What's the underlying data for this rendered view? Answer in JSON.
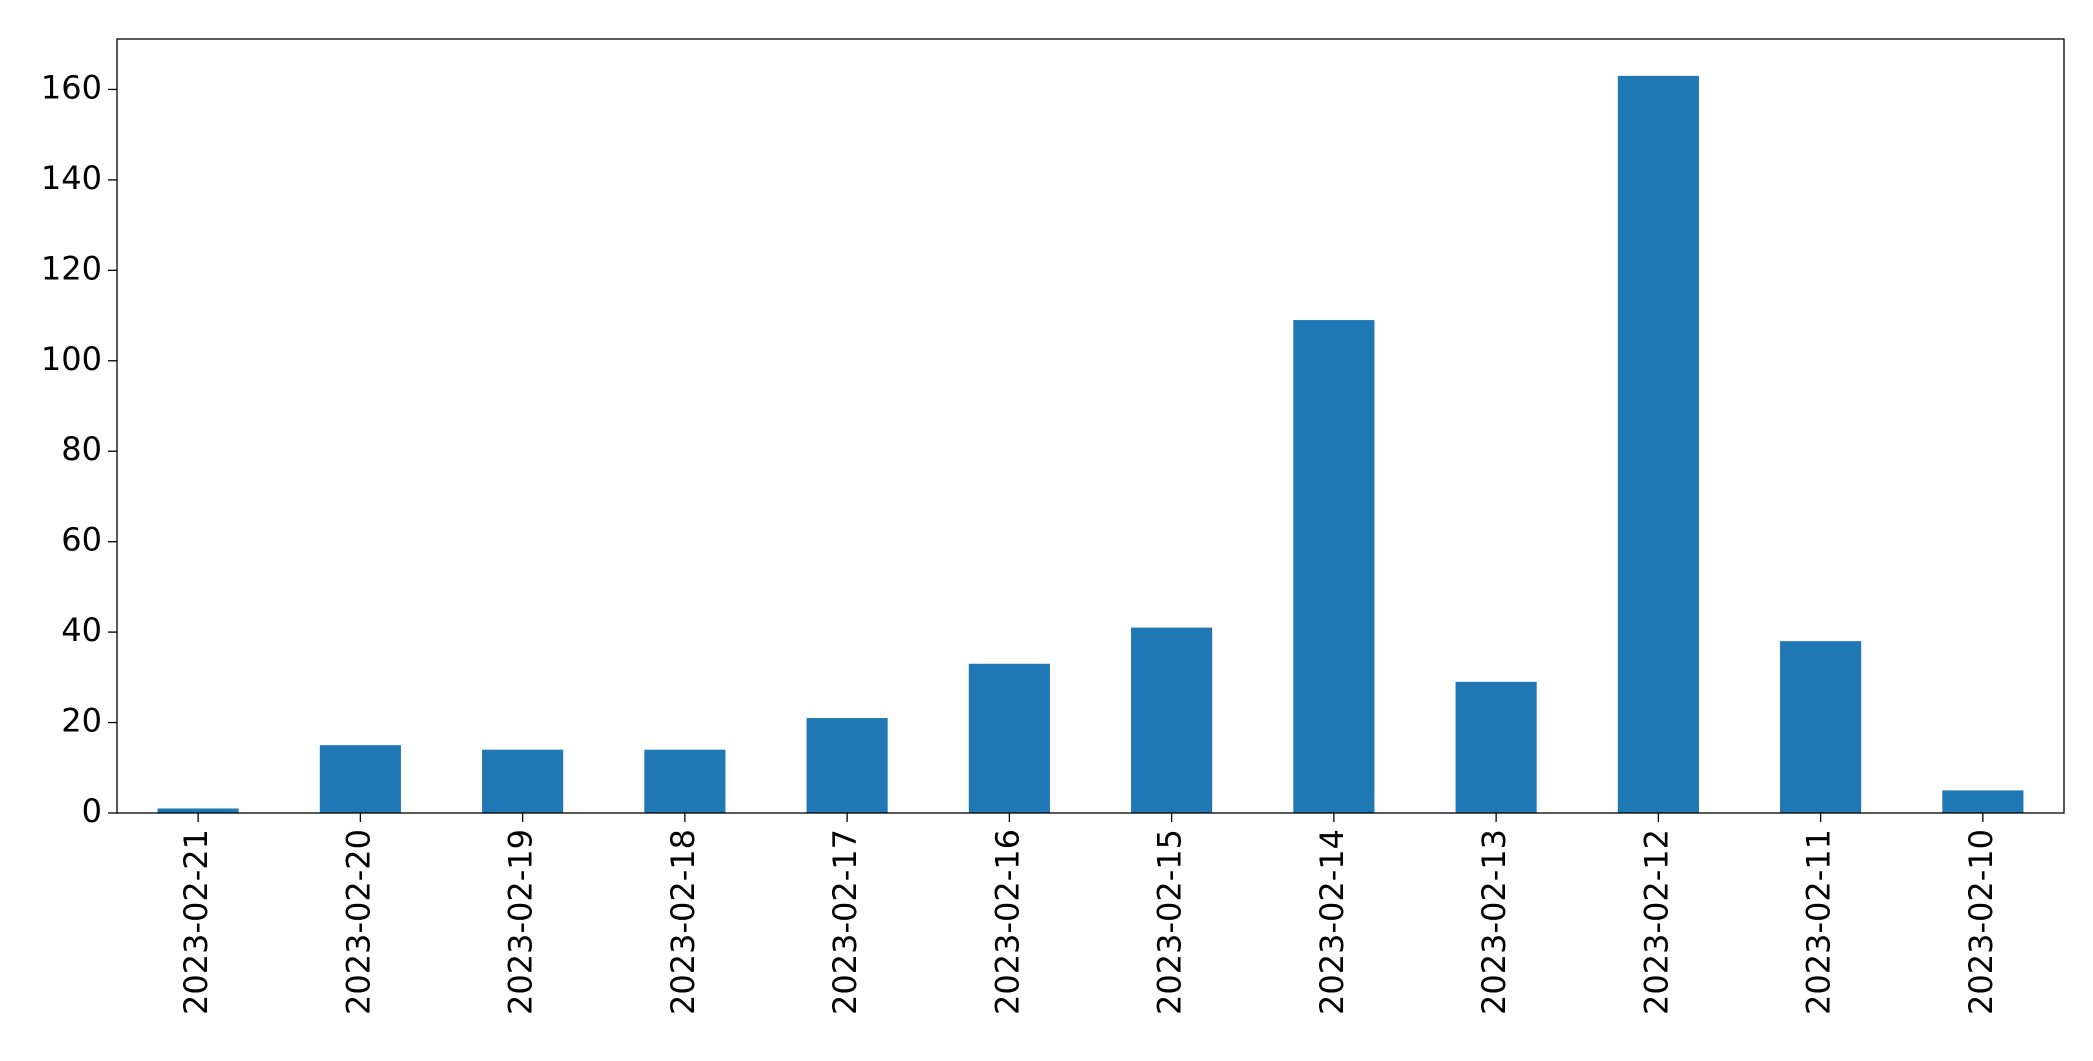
{
  "chart_data": {
    "type": "bar",
    "categories": [
      "2023-02-21",
      "2023-02-20",
      "2023-02-19",
      "2023-02-18",
      "2023-02-17",
      "2023-02-16",
      "2023-02-15",
      "2023-02-14",
      "2023-02-13",
      "2023-02-12",
      "2023-02-11",
      "2023-02-10"
    ],
    "values": [
      1,
      15,
      14,
      14,
      21,
      33,
      41,
      109,
      29,
      163,
      38,
      5
    ],
    "color": "#1f77b4",
    "ylim": [
      0,
      171.15
    ],
    "yticks": [
      0,
      20,
      40,
      60,
      80,
      100,
      120,
      140,
      160
    ],
    "grid": false
  }
}
